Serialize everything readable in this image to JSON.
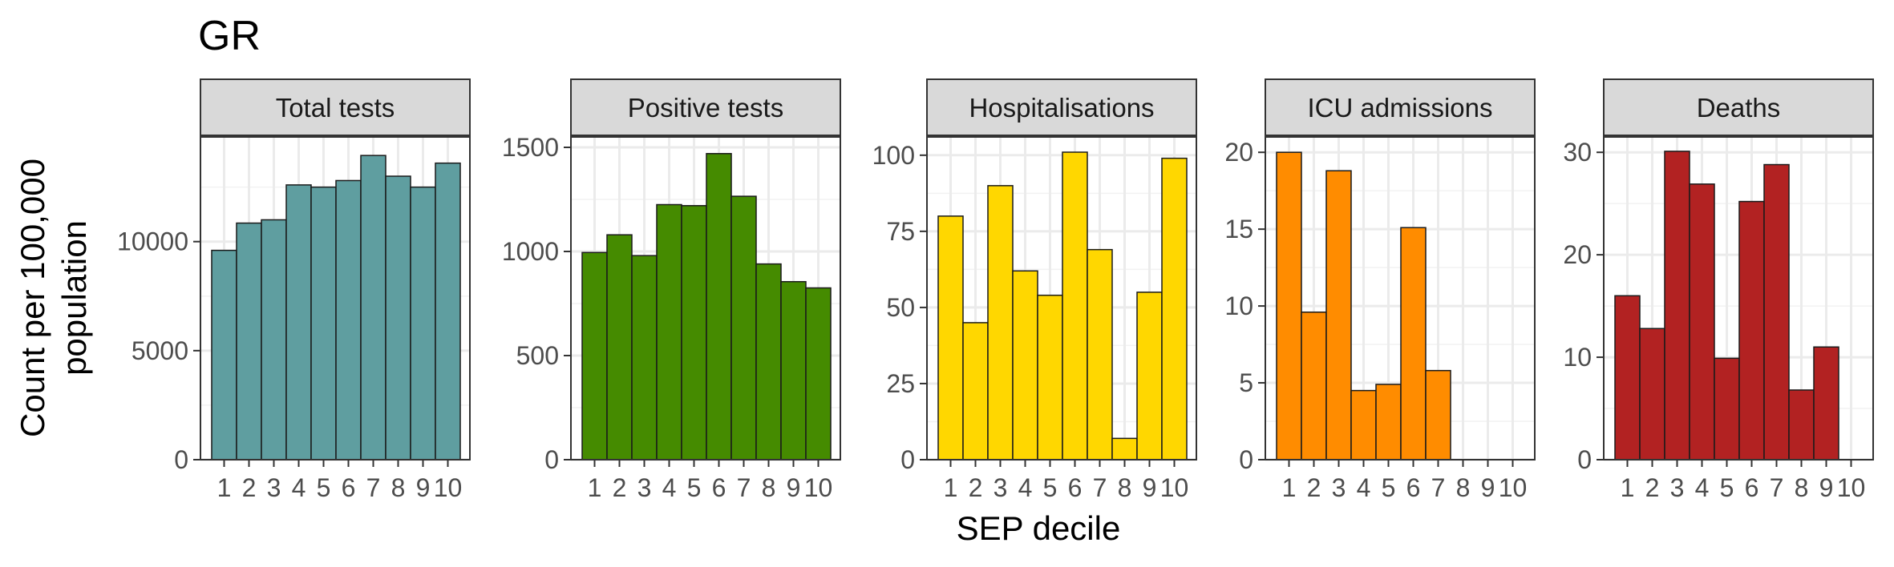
{
  "chart_data": {
    "type": "bar",
    "title": "GR",
    "xlabel": "SEP decile",
    "ylabel": [
      "Count per 100,000",
      "population"
    ],
    "categories": [
      "1",
      "2",
      "3",
      "4",
      "5",
      "6",
      "7",
      "8",
      "9",
      "10"
    ],
    "grid": true,
    "legend": "none",
    "panels": [
      {
        "name": "Total tests",
        "color": "#5F9EA0",
        "values": [
          9600,
          10850,
          11000,
          12600,
          12500,
          12800,
          13950,
          13000,
          12500,
          13600
        ],
        "ylim": [
          0,
          14800
        ],
        "yticks": [
          0,
          5000,
          10000
        ],
        "ytick_labels": [
          "0",
          "5000",
          "10000"
        ]
      },
      {
        "name": "Positive tests",
        "color": "#458B00",
        "values": [
          995,
          1080,
          980,
          1225,
          1220,
          1470,
          1265,
          940,
          855,
          825
        ],
        "ylim": [
          0,
          1550
        ],
        "yticks": [
          0,
          500,
          1000,
          1500
        ],
        "ytick_labels": [
          "0",
          "500",
          "1000",
          "1500"
        ]
      },
      {
        "name": "Hospitalisations",
        "color": "#FFD700",
        "values": [
          80,
          45,
          90,
          62,
          54,
          101,
          69,
          7,
          55,
          99
        ],
        "ylim": [
          0,
          106
        ],
        "yticks": [
          0,
          25,
          50,
          75,
          100
        ],
        "ytick_labels": [
          "0",
          "25",
          "50",
          "75",
          "100"
        ]
      },
      {
        "name": "ICU admissions",
        "color": "#FF8C00",
        "values": [
          20,
          9.6,
          18.8,
          4.5,
          4.9,
          15.1,
          5.8,
          0,
          0,
          0
        ],
        "ylim": [
          0,
          21
        ],
        "yticks": [
          0,
          5,
          10,
          15,
          20
        ],
        "ytick_labels": [
          "0",
          "5",
          "10",
          "15",
          "20"
        ]
      },
      {
        "name": "Deaths",
        "color": "#B22222",
        "values": [
          16,
          12.8,
          30.1,
          26.9,
          9.9,
          25.2,
          28.8,
          6.8,
          11,
          0
        ],
        "ylim": [
          0,
          31.5
        ],
        "yticks": [
          0,
          10,
          20,
          30
        ],
        "ytick_labels": [
          "0",
          "10",
          "20",
          "30"
        ]
      }
    ]
  }
}
